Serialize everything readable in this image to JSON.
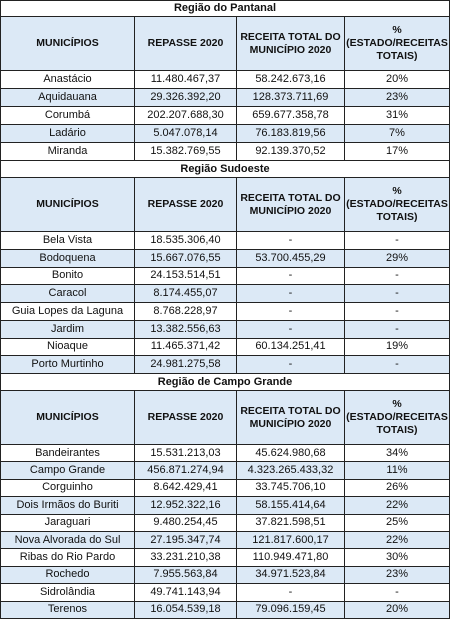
{
  "sections": [
    {
      "title": "Região do Pantanal",
      "headers": [
        "MUNICÍPIOS",
        "REPASSE 2020",
        "RECEITA TOTAL DO MUNICÍPIO 2020",
        "% (ESTADO/RECEITAS TOTAIS)"
      ],
      "rows": [
        [
          "Anastácio",
          "11.480.467,37",
          "58.242.673,16",
          "20%"
        ],
        [
          "Aquidauana",
          "29.326.392,20",
          "128.373.711,69",
          "23%"
        ],
        [
          "Corumbá",
          "202.207.688,30",
          "659.677.358,78",
          "31%"
        ],
        [
          "Ladário",
          "5.047.078,14",
          "76.183.819,56",
          "7%"
        ],
        [
          "Miranda",
          "15.382.769,55",
          "92.139.370,52",
          "17%"
        ]
      ]
    },
    {
      "title": "Região Sudoeste",
      "headers": [
        "MUNICÍPIOS",
        "REPASSE 2020",
        "RECEITA TOTAL DO MUNICÍPIO 2020",
        "% (ESTADO/RECEITAS TOTAIS)"
      ],
      "rows": [
        [
          "Bela Vista",
          "18.535.306,40",
          "-",
          "-"
        ],
        [
          "Bodoquena",
          "15.667.076,55",
          "53.700.455,29",
          "29%"
        ],
        [
          "Bonito",
          "24.153.514,51",
          "-",
          "-"
        ],
        [
          "Caracol",
          "8.174.455,07",
          "-",
          "-"
        ],
        [
          "Guia Lopes da Laguna",
          "8.768.228,97",
          "-",
          "-"
        ],
        [
          "Jardim",
          "13.382.556,63",
          "-",
          "-"
        ],
        [
          "Nioaque",
          "11.465.371,42",
          "60.134.251,41",
          "19%"
        ],
        [
          "Porto Murtinho",
          "24.981.275,58",
          "-",
          "-"
        ]
      ]
    },
    {
      "title": "Região de Campo Grande",
      "headers": [
        "MUNICÍPIOS",
        "REPASSE 2020",
        "RECEITA TOTAL DO MUNICÍPIO 2020",
        "% (ESTADO/RECEITAS TOTAIS)"
      ],
      "rows": [
        [
          "Bandeirantes",
          "15.531.213,03",
          "45.624.980,68",
          "34%"
        ],
        [
          "Campo Grande",
          "456.871.274,94",
          "4.323.265.433,32",
          "11%"
        ],
        [
          "Corguinho",
          "8.642.429,41",
          "33.745.706,10",
          "26%"
        ],
        [
          "Dois Irmãos do Buriti",
          "12.952.322,16",
          "58.155.414,64",
          "22%"
        ],
        [
          "Jaraguari",
          "9.480.254,45",
          "37.821.598,51",
          "25%"
        ],
        [
          "Nova Alvorada do Sul",
          "27.195.347,74",
          "121.817.600,17",
          "22%"
        ],
        [
          "Ribas do Rio Pardo",
          "33.231.210,38",
          "110.949.471,80",
          "30%"
        ],
        [
          "Rochedo",
          "7.955.563,84",
          "34.971.523,84",
          "23%"
        ],
        [
          "Sidrolândia",
          "49.741.143,94",
          "-",
          "-"
        ],
        [
          "Terenos",
          "16.054.539,18",
          "79.096.159,45",
          "20%"
        ]
      ]
    }
  ]
}
